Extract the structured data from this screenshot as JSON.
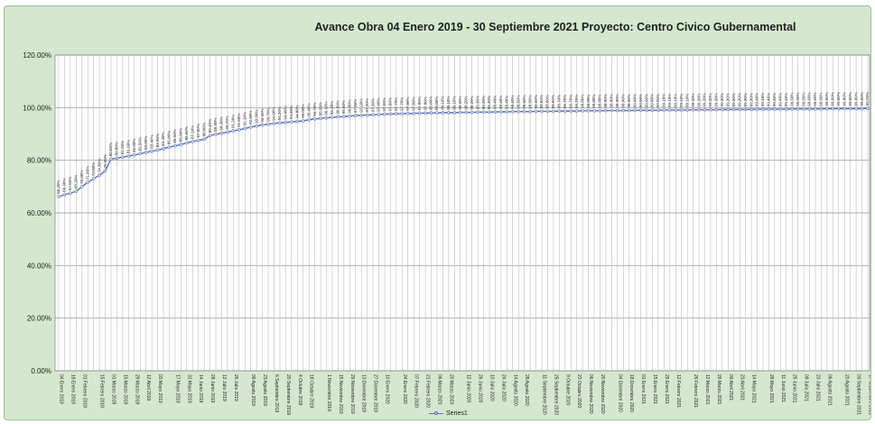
{
  "chart_data": {
    "type": "line",
    "title": "Avance Obra 04 Enero 2019 - 30 Septiembre 2021 Proyecto: Centro Civico Gubernamental",
    "xlabel": "",
    "ylabel": "",
    "ylim": [
      0,
      120
    ],
    "y_ticks": [
      "0.00%",
      "20.00%",
      "40.00%",
      "60.00%",
      "80.00%",
      "100.00%",
      "120.00%"
    ],
    "grid": true,
    "legend": "bottom",
    "series_color": "#5b6fb3",
    "marker_color": "#c9cde8",
    "x_tick_labels": [
      "04 Enero 2019",
      "18 Enero 2019",
      "01 Febrero 2019",
      "15 Febrero 2019",
      "01 Marzo 2019",
      "15 Marzo 2019",
      "29 Marzo 2019",
      "12 Abril 2019",
      "03 Mayo 2019",
      "17 Mayo 2019",
      "31 Mayo 2019",
      "14 Junio 2019",
      "28 Junio 2019",
      "12 Julio 2019",
      "26 Julio 2019",
      "09 Agosto 2019",
      "23 Agosto 2019",
      "6 Septiembre 2019",
      "20 Septiembre 2019",
      "4 Octubre 2019",
      "18 Octubre 2019",
      "1 Noviembre 2019",
      "15 Noviembre 2019",
      "29 Noviembre 2019",
      "13 Diciembre 2019",
      "27 Diciembre 2019",
      "10 Enero 2020",
      "24 Enero 2020",
      "07 Febrero 2020",
      "21 Febrero 2020",
      "06 Marzo 2020",
      "20 Marzo 2020",
      "12 Junio 2020",
      "26 Junio 2020",
      "10 Julio 2020",
      "24 Julio 2020",
      "14 Agosto 2020",
      "28 Agosto 2020",
      "11 Septiembre 2020",
      "25 Septiembre 2020",
      "9 Octubre 2020",
      "23 Octubre 2020",
      "06 Noviembre 2020",
      "20 Noviembre 2020",
      "04 Diciembre 2020",
      "18 Diciembre 2020",
      "01 Enero 2021",
      "15 Enero 2021",
      "29 Enero 2021",
      "12 Febrero 2021",
      "26 Febrero 2021",
      "12 Marzo 2021",
      "26 Marzo 2021",
      "09 Abril 2021",
      "23 Abril 2021",
      "14 Mayo 2021",
      "28 Mayo 2021",
      "11 Junio 2021",
      "25 Junio 2021",
      "09 Julio 2021",
      "23 Julio 2021",
      "06 Agosto 2021",
      "20 Agosto 2021",
      "03 Septiembre 2021",
      "17 Septiembre 2021"
    ],
    "series": [
      {
        "name": "Series1",
        "values": [
          66.2,
          66.9,
          67.5,
          68.2,
          70.0,
          71.6,
          73.0,
          74.3,
          76.0,
          80.5,
          80.8,
          81.2,
          81.6,
          82.0,
          82.5,
          83.0,
          83.4,
          83.9,
          84.4,
          85.0,
          85.5,
          86.0,
          86.6,
          87.1,
          87.6,
          88.0,
          89.4,
          89.9,
          90.3,
          90.7,
          91.2,
          91.6,
          92.1,
          92.6,
          93.0,
          93.4,
          93.7,
          94.0,
          94.2,
          94.4,
          94.6,
          94.8,
          95.0,
          95.4,
          95.7,
          95.9,
          96.1,
          96.3,
          96.5,
          96.6,
          96.8,
          97.0,
          97.1,
          97.2,
          97.3,
          97.4,
          97.5,
          97.6,
          97.7,
          97.7,
          97.8,
          97.8,
          97.9,
          97.9,
          98.0,
          98.0,
          98.1,
          98.1,
          98.1,
          98.2,
          98.2,
          98.2,
          98.3,
          98.3,
          98.3,
          98.4,
          98.4,
          98.4,
          98.5,
          98.5,
          98.5,
          98.5,
          98.6,
          98.6,
          98.6,
          98.6,
          98.7,
          98.7,
          98.7,
          98.7,
          98.8,
          98.8,
          98.8,
          98.8,
          98.9,
          98.9,
          98.9,
          98.9,
          98.9,
          99.0,
          99.0,
          99.0,
          99.0,
          99.0,
          99.1,
          99.1,
          99.1,
          99.1,
          99.1,
          99.2,
          99.2,
          99.2,
          99.2,
          99.2,
          99.3,
          99.3,
          99.3,
          99.3,
          99.3,
          99.3,
          99.4,
          99.4,
          99.4,
          99.4,
          99.4,
          99.4,
          99.5,
          99.5,
          99.5,
          99.5,
          99.5,
          99.5,
          99.6,
          99.6,
          99.6,
          99.6,
          99.6,
          99.6,
          99.6,
          99.7
        ]
      }
    ]
  }
}
